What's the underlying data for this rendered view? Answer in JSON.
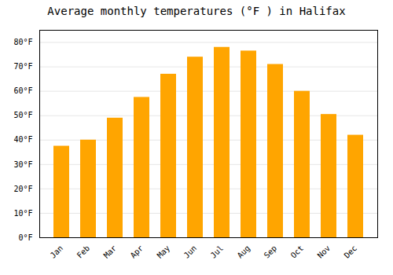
{
  "chart_data": {
    "type": "bar",
    "title": "Average monthly temperatures (°F ) in Halifax",
    "categories": [
      "Jan",
      "Feb",
      "Mar",
      "Apr",
      "May",
      "Jun",
      "Jul",
      "Aug",
      "Sep",
      "Oct",
      "Nov",
      "Dec"
    ],
    "values": [
      37.5,
      40.0,
      49.0,
      57.5,
      67.0,
      74.0,
      78.0,
      76.5,
      71.0,
      60.0,
      50.5,
      42.0
    ],
    "color": "#FFA500",
    "ylim": [
      0,
      85
    ],
    "yticks": [
      {
        "value": 0,
        "label": "0°F"
      },
      {
        "value": 10,
        "label": "10°F"
      },
      {
        "value": 20,
        "label": "20°F"
      },
      {
        "value": 30,
        "label": "30°F"
      },
      {
        "value": 40,
        "label": "40°F"
      },
      {
        "value": 50,
        "label": "50°F"
      },
      {
        "value": 60,
        "label": "60°F"
      },
      {
        "value": 70,
        "label": "70°F"
      },
      {
        "value": 80,
        "label": "80°F"
      }
    ],
    "grid": true
  }
}
